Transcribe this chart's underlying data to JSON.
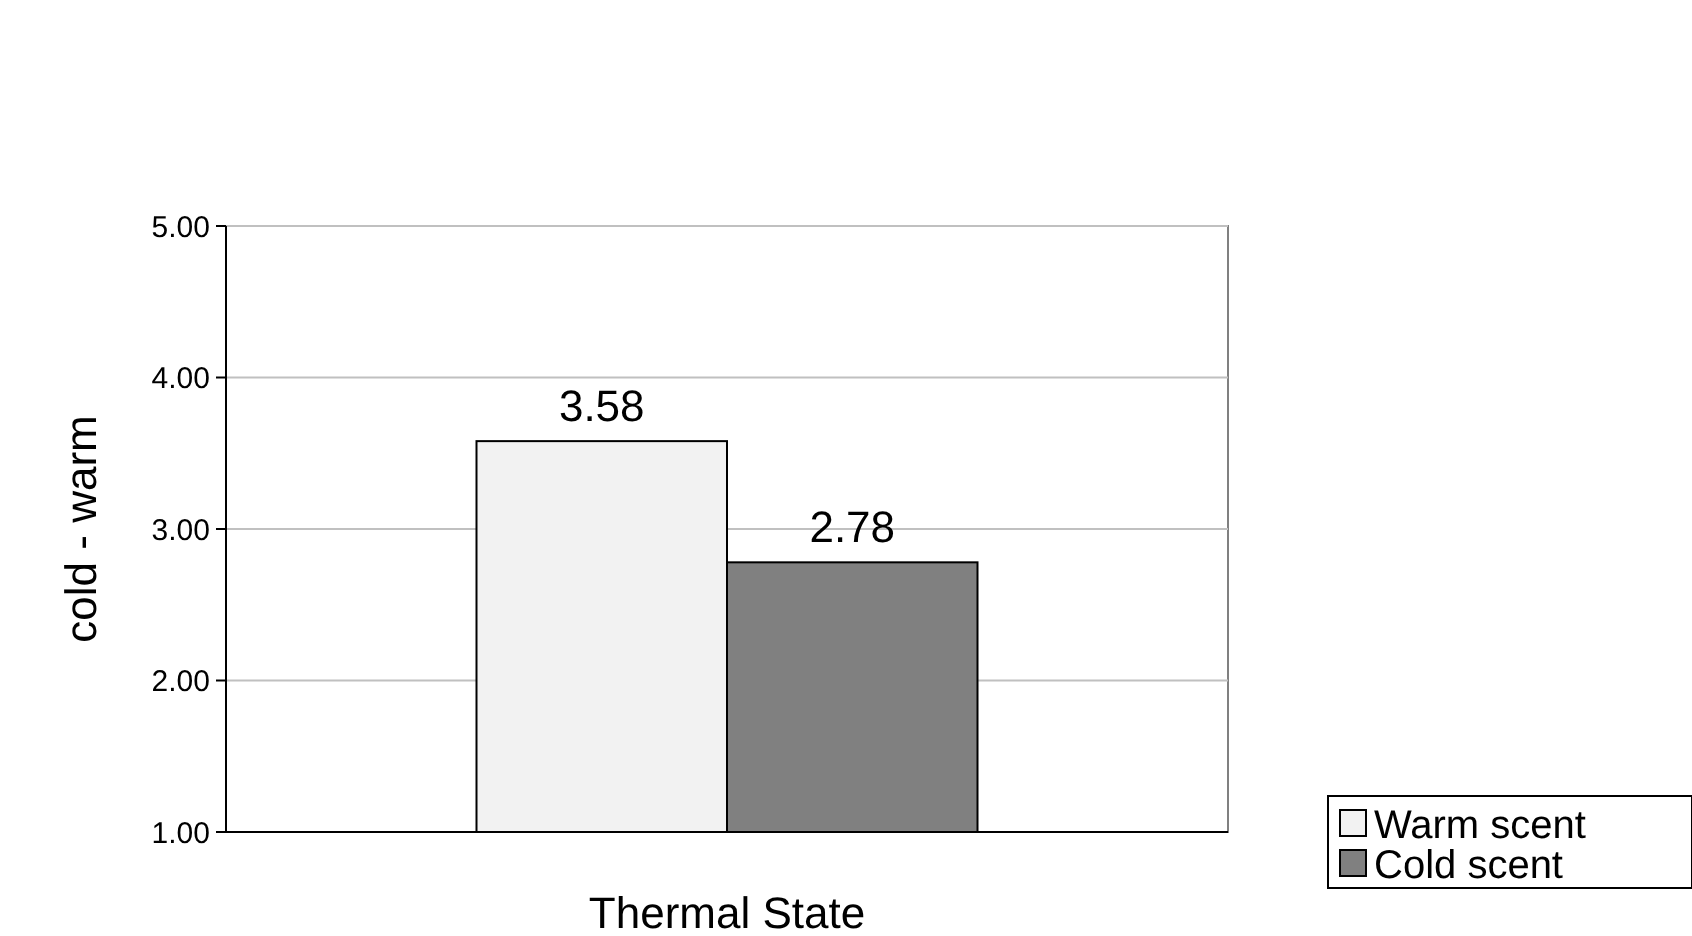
{
  "chart_data": {
    "type": "bar",
    "xlabel": "Thermal State",
    "ylabel": "cold - warm",
    "categories": [
      null
    ],
    "series": [
      {
        "name": "Warm scent",
        "color": "#f2f2f2",
        "values": [
          3.58
        ]
      },
      {
        "name": "Cold scent",
        "color": "#808080",
        "values": [
          2.78
        ]
      }
    ],
    "ylim": [
      1,
      5
    ],
    "yticks": [
      {
        "value": 1,
        "label": "1.00"
      },
      {
        "value": 2,
        "label": "2.00"
      },
      {
        "value": 3,
        "label": "3.00"
      },
      {
        "value": 4,
        "label": "4.00"
      },
      {
        "value": 5,
        "label": "5.00"
      }
    ],
    "grid": "y",
    "data_labels": true,
    "legend": "bottom right"
  }
}
